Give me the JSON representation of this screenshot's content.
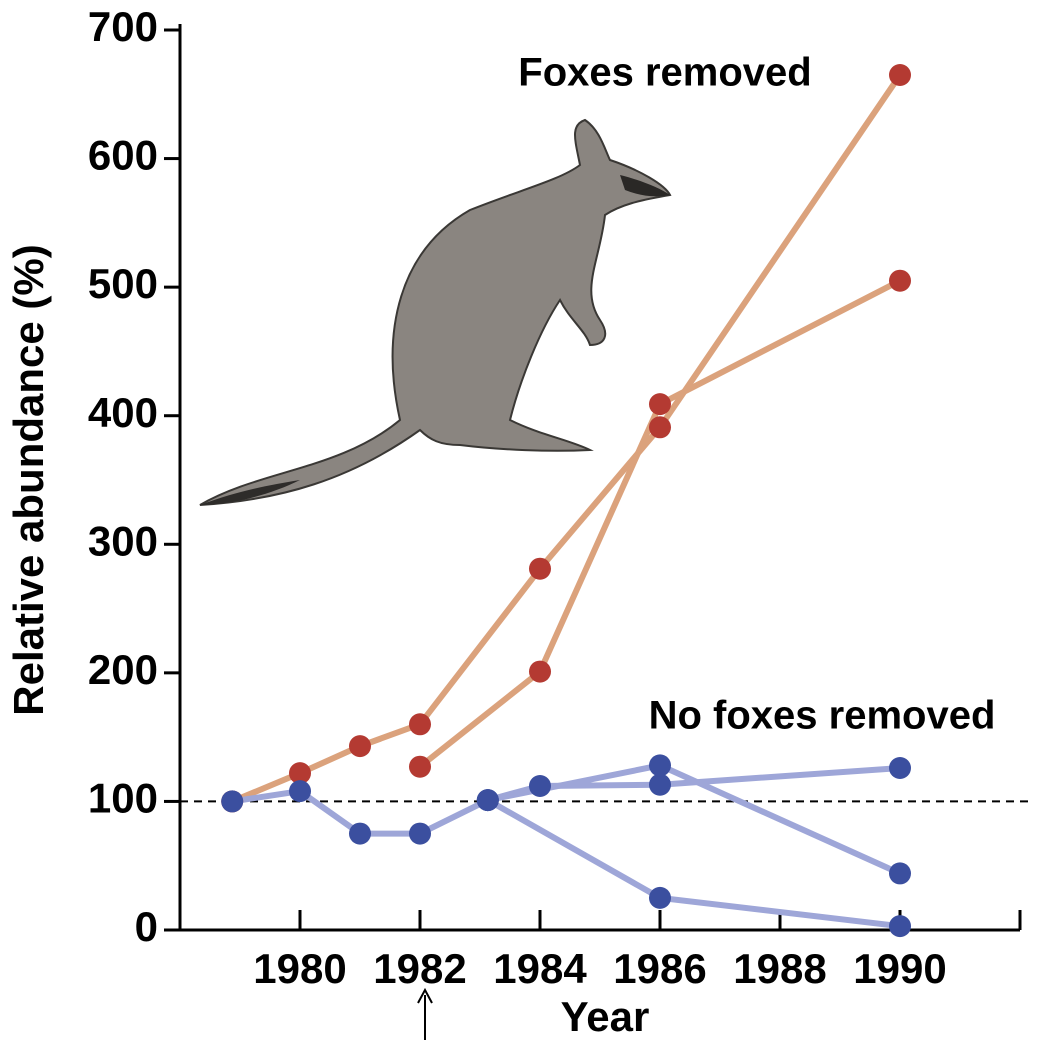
{
  "chart_data": {
    "type": "line",
    "xlabel": "Year",
    "ylabel": "Relative abundance (%)",
    "annotations": [
      "Foxes removed",
      "No foxes removed"
    ],
    "xlim": [
      1978,
      1992
    ],
    "xticks": [
      1980,
      1982,
      1984,
      1986,
      1988,
      1990
    ],
    "ylim": [
      0,
      700
    ],
    "yticks": [
      0,
      100,
      200,
      300,
      400,
      500,
      600,
      700
    ],
    "reference_line": 100,
    "series": [
      {
        "line_color": "#dba27c",
        "color": "#b43a32",
        "x": [
          1978.87,
          1980,
          1981,
          1982,
          1984,
          1986,
          1990
        ],
        "values": [
          100,
          122,
          143,
          160,
          281,
          391,
          665
        ]
      },
      {
        "line_color": "#dba27c",
        "color": "#b43a32",
        "x": [
          1982,
          1984,
          1986,
          1990
        ],
        "values": [
          127,
          201,
          409,
          505
        ]
      },
      {
        "line_color": "#9ea6d8",
        "color": "#3b4f9f",
        "x": [
          1978.87,
          1980,
          1981,
          1982,
          1983.13,
          1984,
          1986,
          1990
        ],
        "values": [
          100,
          108,
          75,
          75,
          101,
          112,
          113,
          126
        ]
      },
      {
        "line_color": "#9ea6d8",
        "color": "#3b4f9f",
        "x": [
          1983.13,
          1986,
          1990
        ],
        "values": [
          101,
          25,
          3
        ]
      },
      {
        "line_color": "#9ea6d8",
        "color": "#3b4f9f",
        "x": [
          1983.13,
          1986,
          1990
        ],
        "values": [
          101,
          128,
          44
        ]
      }
    ]
  }
}
